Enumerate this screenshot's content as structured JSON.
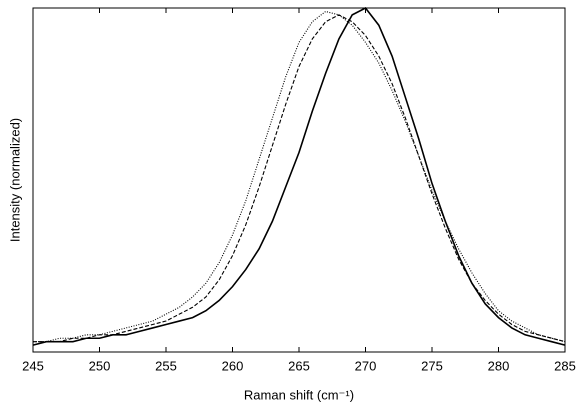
{
  "chart_data": {
    "type": "line",
    "xlabel": "Raman shift (cm⁻¹)",
    "ylabel": "Intensity (normalized)",
    "x": [
      245,
      246,
      247,
      248,
      249,
      250,
      251,
      252,
      253,
      254,
      255,
      256,
      257,
      258,
      259,
      260,
      261,
      262,
      263,
      264,
      265,
      266,
      267,
      268,
      269,
      270,
      271,
      272,
      273,
      274,
      275,
      276,
      277,
      278,
      279,
      280,
      281,
      282,
      283,
      284,
      285
    ],
    "series": [
      {
        "color": "#000000",
        "dash": "solid",
        "values": [
          0.02,
          0.03,
          0.03,
          0.03,
          0.04,
          0.04,
          0.05,
          0.05,
          0.06,
          0.07,
          0.08,
          0.09,
          0.1,
          0.12,
          0.15,
          0.19,
          0.24,
          0.3,
          0.38,
          0.48,
          0.58,
          0.7,
          0.81,
          0.91,
          0.98,
          1.0,
          0.95,
          0.86,
          0.74,
          0.62,
          0.49,
          0.38,
          0.28,
          0.2,
          0.14,
          0.1,
          0.07,
          0.05,
          0.04,
          0.03,
          0.02
        ]
      },
      {
        "color": "#000000",
        "dash": "dashed",
        "values": [
          0.03,
          0.03,
          0.03,
          0.04,
          0.04,
          0.05,
          0.05,
          0.06,
          0.07,
          0.08,
          0.09,
          0.11,
          0.13,
          0.16,
          0.21,
          0.28,
          0.37,
          0.48,
          0.6,
          0.72,
          0.83,
          0.91,
          0.96,
          0.98,
          0.96,
          0.92,
          0.86,
          0.78,
          0.68,
          0.57,
          0.46,
          0.36,
          0.27,
          0.2,
          0.15,
          0.11,
          0.08,
          0.06,
          0.05,
          0.04,
          0.03
        ]
      },
      {
        "color": "#000000",
        "dash": "dotted",
        "values": [
          0.03,
          0.03,
          0.04,
          0.04,
          0.05,
          0.05,
          0.06,
          0.07,
          0.08,
          0.09,
          0.11,
          0.13,
          0.16,
          0.2,
          0.26,
          0.34,
          0.44,
          0.56,
          0.68,
          0.8,
          0.9,
          0.96,
          0.99,
          0.98,
          0.95,
          0.9,
          0.84,
          0.76,
          0.67,
          0.57,
          0.47,
          0.38,
          0.3,
          0.23,
          0.17,
          0.12,
          0.09,
          0.07,
          0.05,
          0.04,
          0.03
        ]
      }
    ],
    "xlim": [
      245,
      285
    ],
    "xticks": [
      245,
      250,
      255,
      260,
      265,
      270,
      275,
      280,
      285
    ],
    "ylim": [
      0,
      1
    ]
  }
}
